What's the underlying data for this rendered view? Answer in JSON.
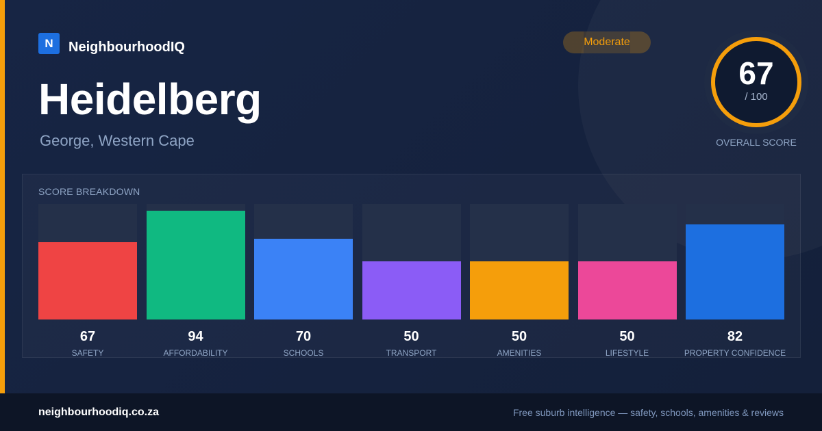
{
  "brand": {
    "logo_letter": "N",
    "name": "NeighbourhoodIQ"
  },
  "badge": {
    "label": "Moderate",
    "color": "#f59e0b"
  },
  "suburb": {
    "name": "Heidelberg",
    "location": "George, Western Cape"
  },
  "overall": {
    "score": "67",
    "out_of": "/ 100",
    "caption": "OVERALL SCORE",
    "fraction": 0.67,
    "ring_color": "#f59e0b"
  },
  "breakdown": {
    "title": "SCORE BREAKDOWN",
    "items": [
      {
        "value": "67",
        "label": "SAFETY",
        "score": 67,
        "color": "#ef4444"
      },
      {
        "value": "94",
        "label": "AFFORDABILITY",
        "score": 94,
        "color": "#10b981"
      },
      {
        "value": "70",
        "label": "SCHOOLS",
        "score": 70,
        "color": "#3b82f6"
      },
      {
        "value": "50",
        "label": "TRANSPORT",
        "score": 50,
        "color": "#8b5cf6"
      },
      {
        "value": "50",
        "label": "AMENITIES",
        "score": 50,
        "color": "#f59e0b"
      },
      {
        "value": "50",
        "label": "LIFESTYLE",
        "score": 50,
        "color": "#ec4899"
      },
      {
        "value": "82",
        "label": "PROPERTY CONFIDENCE",
        "score": 82,
        "color": "#1d6fe0"
      }
    ]
  },
  "footer": {
    "domain": "neighbourhoodiq.co.za",
    "tagline": "Free suburb intelligence — safety, schools, amenities & reviews"
  }
}
